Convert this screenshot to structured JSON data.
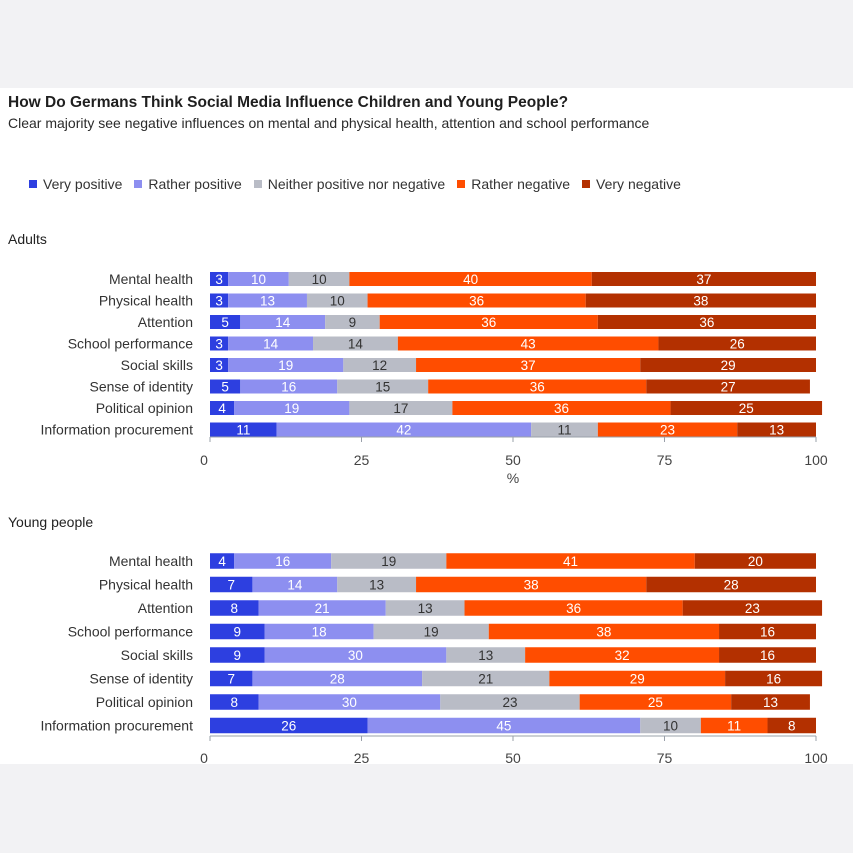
{
  "title": "How Do Germans Think Social Media Influence Children and Young People?",
  "subtitle": "Clear majority see negative influences on mental and physical health, attention and school performance",
  "colors": {
    "very_positive": "#2d3fe0",
    "rather_positive": "#8d8ff0",
    "neither": "#b9bcc6",
    "rather_negative": "#ff4d00",
    "very_negative": "#b33000",
    "axis": "#9aa0aa"
  },
  "chart_data": [
    {
      "type": "bar",
      "orientation": "horizontal",
      "stacked": true,
      "title": "Adults",
      "xlabel": "%",
      "xlim": [
        0,
        100
      ],
      "xticks": [
        0,
        25,
        50,
        75,
        100
      ],
      "legend_position": "top",
      "categories": [
        "Mental health",
        "Physical health",
        "Attention",
        "School performance",
        "Social skills",
        "Sense of identity",
        "Political opinion",
        "Information procurement"
      ],
      "series": [
        {
          "name": "Very positive",
          "values": [
            3,
            3,
            5,
            3,
            3,
            5,
            4,
            11
          ]
        },
        {
          "name": "Rather positive",
          "values": [
            10,
            13,
            14,
            14,
            19,
            16,
            19,
            42
          ]
        },
        {
          "name": "Neither positive nor negative",
          "values": [
            10,
            10,
            9,
            14,
            12,
            15,
            17,
            11
          ]
        },
        {
          "name": "Rather negative",
          "values": [
            40,
            36,
            36,
            43,
            37,
            36,
            36,
            23
          ]
        },
        {
          "name": "Very negative",
          "values": [
            37,
            38,
            36,
            26,
            29,
            27,
            25,
            13
          ]
        }
      ]
    },
    {
      "type": "bar",
      "orientation": "horizontal",
      "stacked": true,
      "title": "Young people",
      "xlabel": "",
      "xlim": [
        0,
        100
      ],
      "xticks": [
        0,
        25,
        50,
        75,
        100
      ],
      "legend_position": "top",
      "categories": [
        "Mental health",
        "Physical health",
        "Attention",
        "School performance",
        "Social skills",
        "Sense of identity",
        "Political opinion",
        "Information procurement"
      ],
      "series": [
        {
          "name": "Very positive",
          "values": [
            4,
            7,
            8,
            9,
            9,
            7,
            8,
            26
          ]
        },
        {
          "name": "Rather positive",
          "values": [
            16,
            14,
            21,
            18,
            30,
            28,
            30,
            45
          ]
        },
        {
          "name": "Neither positive nor negative",
          "values": [
            19,
            13,
            13,
            19,
            13,
            21,
            23,
            10
          ]
        },
        {
          "name": "Rather negative",
          "values": [
            41,
            38,
            36,
            38,
            32,
            29,
            25,
            11
          ]
        },
        {
          "name": "Very negative",
          "values": [
            20,
            28,
            23,
            16,
            16,
            16,
            13,
            8
          ]
        }
      ]
    }
  ]
}
